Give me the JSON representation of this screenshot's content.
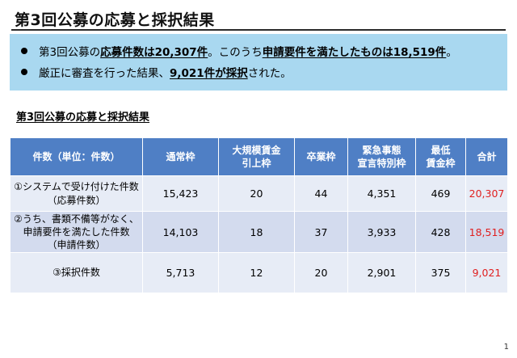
{
  "slide": {
    "title": "第3回公募の応募と採択結果",
    "page_number": "1"
  },
  "summary": {
    "line1": {
      "t1": "第3回公募の",
      "h1": "応募件数は20,307件",
      "t2": "。このうち",
      "h2": "申請要件を満たしたものは18,519件",
      "t3": "。"
    },
    "line2": {
      "t1": "厳正に審査を行った結果、",
      "h1": "9,021件が採択",
      "t2": "された。"
    }
  },
  "section_title": "第3回公募の応募と採択結果",
  "table": {
    "headers": {
      "label": "件数（単位：件数）",
      "normal": "通常枠",
      "large_1": "大規模賃金",
      "large_2": "引上枠",
      "graduate": "卒業枠",
      "emergency_1": "緊急事態",
      "emergency_2": "宣言特別枠",
      "minwage_1": "最低",
      "minwage_2": "賃金枠",
      "total": "合計"
    },
    "rows": [
      {
        "label_lines": [
          "①システムで受け付けた件数",
          "（応募件数）"
        ],
        "values": [
          "15,423",
          "20",
          "44",
          "4,351",
          "469"
        ],
        "total": "20,307"
      },
      {
        "label_lines": [
          "②うち、書類不備等がなく、",
          "申請要件を満たした件数",
          "（申請件数）"
        ],
        "values": [
          "14,103",
          "18",
          "37",
          "3,933",
          "428"
        ],
        "total": "18,519"
      },
      {
        "label_lines": [
          "③採択件数"
        ],
        "values": [
          "5,713",
          "12",
          "20",
          "2,901",
          "375"
        ],
        "total": "9,021"
      }
    ]
  },
  "colors": {
    "header_bg": "#4f7fc5",
    "summary_bg": "#a9d8f0",
    "total_text": "#e02020",
    "row_light": "#e7ecf6",
    "row_dark": "#d3dbee"
  }
}
